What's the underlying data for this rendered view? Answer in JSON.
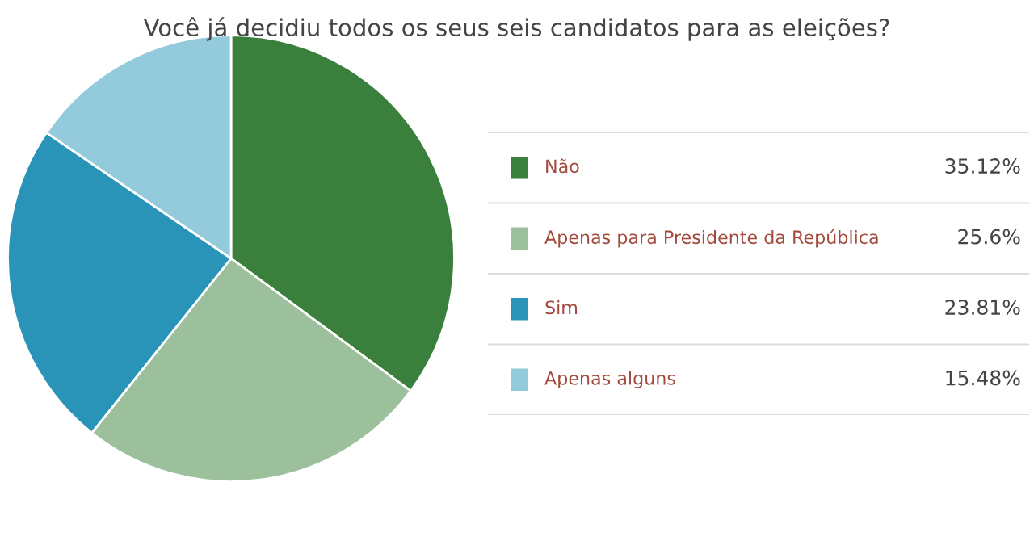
{
  "chart_data": {
    "type": "pie",
    "title": "Você já decidiu todos os seus seis candidatos para as eleições?",
    "categories": [
      "Não",
      "Apenas para Presidente da República",
      "Sim",
      "Apenas alguns"
    ],
    "values": [
      35.12,
      25.6,
      23.81,
      15.48
    ],
    "colors": [
      "#3a7f3c",
      "#9cc09b",
      "#2a94b8",
      "#94cbdc"
    ],
    "value_labels": [
      "35.12%",
      "25.6%",
      "23.81%",
      "15.48%"
    ],
    "legend": "right"
  }
}
